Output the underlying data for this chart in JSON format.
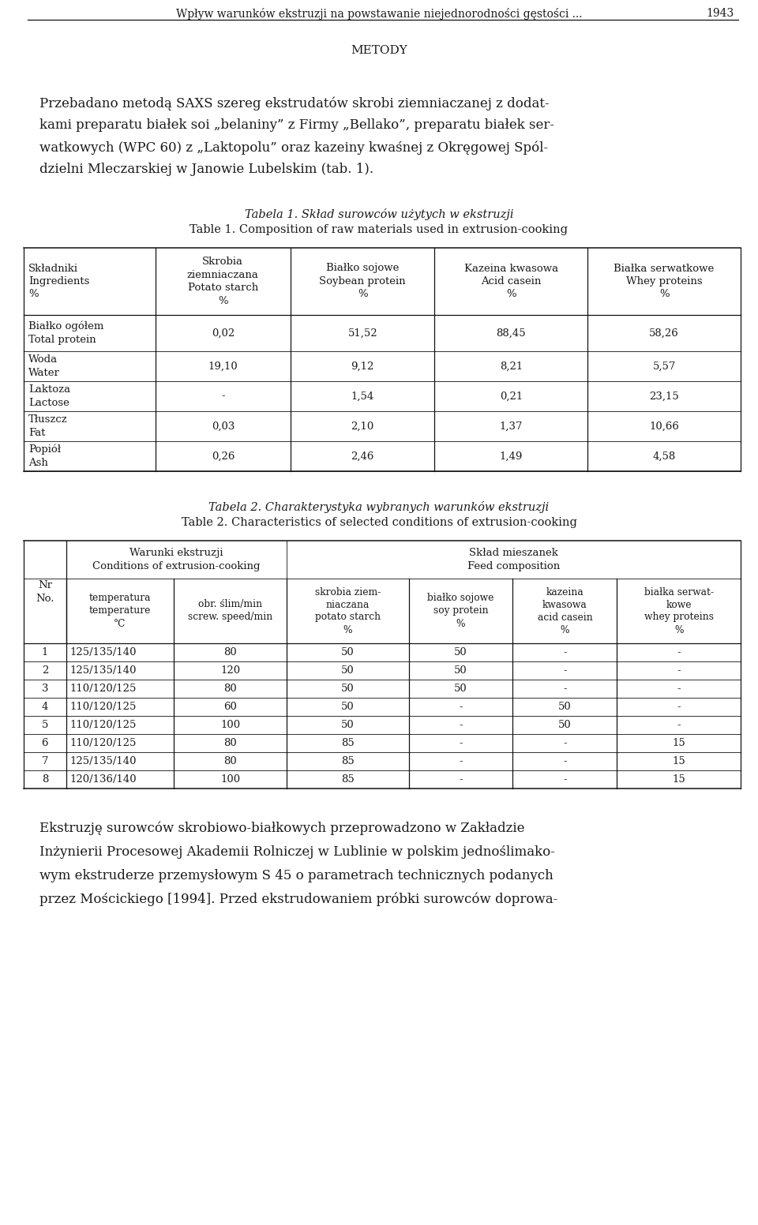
{
  "page_header": "Wpływ warunków ekstruzji na powstawanie niejednorodności gęstości ...",
  "page_number": "1943",
  "section_title": "METODY",
  "para_lines": [
    "Przebadano metodą SAXS szereg ekstrudatów skrobi ziemniaczanej z dodat-",
    "kami preparatu białek soi „belaniny” z Firmy „Bellako”, preparatu białek ser-",
    "watkowych (WPC 60) z „Laktopolu” oraz kazeiny kwaśnej z Okręgowej Spól-",
    "dzielni Mleczarskiej w Janowie Lubelskim (tab. 1)."
  ],
  "table1_caption_pl": "Tabela 1. Skład surowców użytych w ekstruzji",
  "table1_caption_en": "Table 1. Composition of raw materials used in extrusion-cooking",
  "table1_headers": [
    "Składniki\nIngredients\n%",
    "Skrobia\nziemniaczana\nPotato starch\n%",
    "Białko sojowe\nSoybean protein\n%",
    "Kazeina kwasowa\nAcid casein\n%",
    "Białka serwatkowe\nWhey proteins\n%"
  ],
  "table1_rows": [
    [
      "Białko ogółem\nTotal protein",
      "0,02",
      "51,52",
      "88,45",
      "58,26"
    ],
    [
      "Woda\nWater",
      "19,10",
      "9,12",
      "8,21",
      "5,57"
    ],
    [
      "Laktoza\nLactose",
      "-",
      "1,54",
      "0,21",
      "23,15"
    ],
    [
      "Tłuszcz\nFat",
      "0,03",
      "2,10",
      "1,37",
      "10,66"
    ],
    [
      "Popiół\nAsh",
      "0,26",
      "2,46",
      "1,49",
      "4,58"
    ]
  ],
  "table2_caption_pl": "Tabela 2. Charakterystyka wybranych warunków ekstruzji",
  "table2_caption_en": "Table 2. Characteristics of selected conditions of extrusion-cooking",
  "table2_subheaders": [
    "Nr\nNo.",
    "temperatura\ntemperature\n°C",
    "obr. ślim/min\nscrew. speed/min",
    "skrobia ziem-\nniaczana\npotato starch\n%",
    "białko sojowe\nsoy protein\n%",
    "kazeina\nkwasowa\nacid casein\n%",
    "białka serwat-\nkowe\nwhey proteins\n%"
  ],
  "table2_rows": [
    [
      "1",
      "125/135/140",
      "80",
      "50",
      "50",
      "-",
      "-"
    ],
    [
      "2",
      "125/135/140",
      "120",
      "50",
      "50",
      "-",
      "-"
    ],
    [
      "3",
      "110/120/125",
      "80",
      "50",
      "50",
      "-",
      "-"
    ],
    [
      "4",
      "110/120/125",
      "60",
      "50",
      "-",
      "50",
      "-"
    ],
    [
      "5",
      "110/120/125",
      "100",
      "50",
      "-",
      "50",
      "-"
    ],
    [
      "6",
      "110/120/125",
      "80",
      "85",
      "-",
      "-",
      "15"
    ],
    [
      "7",
      "125/135/140",
      "80",
      "85",
      "-",
      "-",
      "15"
    ],
    [
      "8",
      "120/136/140",
      "100",
      "85",
      "-",
      "-",
      "15"
    ]
  ],
  "bottom_para_lines": [
    "Ekstruzję surowców skrobiowo-białkowych przeprowadzono w Zakładzie",
    "Inżynierii Procesowej Akademii Rolniczej w Lublinie w polskim jednoślimako-",
    "wym ekstruderze przemysłowym S 45 o parametrach technicznych podanych",
    "przez Mościckiego [1994]. Przed ekstrudowaniem próbki surowców doprowa-"
  ],
  "bg_color": "#ffffff",
  "text_color": "#1a1a1a",
  "t1_col_widths": [
    148,
    152,
    162,
    172,
    172
  ],
  "t2_col_widths": [
    48,
    122,
    128,
    138,
    118,
    118,
    140
  ]
}
